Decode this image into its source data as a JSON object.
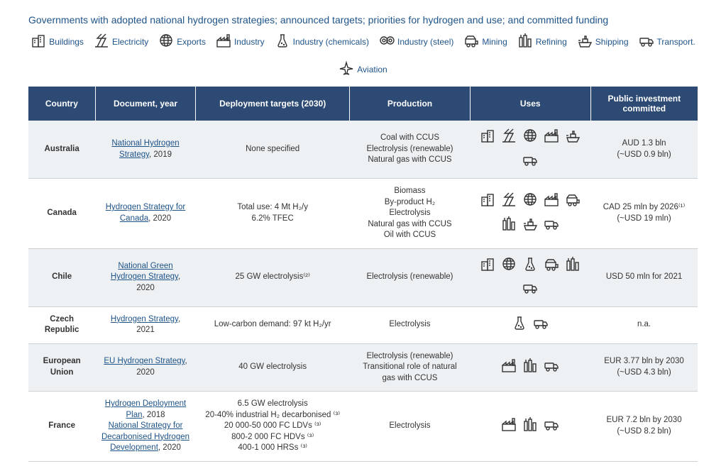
{
  "title": "Governments with adopted national hydrogen strategies; announced targets; priorities for hydrogen and use; and committed funding",
  "colors": {
    "header_bg": "#2c4a73",
    "header_text": "#ffffff",
    "title_text": "#1f5488",
    "link_text": "#1f5488",
    "row_alt_bg": "#eef1f4",
    "icon_stroke": "#333333",
    "border": "#d0d0d0"
  },
  "legend": [
    {
      "icon": "buildings",
      "label": "Buildings"
    },
    {
      "icon": "electricity",
      "label": "Electricity"
    },
    {
      "icon": "exports",
      "label": "Exports"
    },
    {
      "icon": "industry",
      "label": "Industry"
    },
    {
      "icon": "chemicals",
      "label": "Industry (chemicals)"
    },
    {
      "icon": "steel",
      "label": "Industry (steel)"
    },
    {
      "icon": "mining",
      "label": "Mining"
    },
    {
      "icon": "refining",
      "label": "Refining"
    },
    {
      "icon": "shipping",
      "label": "Shipping"
    },
    {
      "icon": "transport",
      "label": "Transport."
    },
    {
      "icon": "aviation",
      "label": "Aviation"
    }
  ],
  "columns": [
    "Country",
    "Document, year",
    "Deployment targets (2030)",
    "Production",
    "Uses",
    "Public investment committed"
  ],
  "rows": [
    {
      "country": "Australia",
      "docs": [
        {
          "text": "National Hydrogen Strategy",
          "year": "2019"
        }
      ],
      "targets": "None specified",
      "production": "Coal with CCUS\nElectrolysis (renewable)\nNatural gas with CCUS",
      "uses": [
        "buildings",
        "electricity",
        "exports",
        "industry",
        "shipping",
        "transport"
      ],
      "funding": "AUD 1.3 bln\n(~USD 0.9 bln)"
    },
    {
      "country": "Canada",
      "docs": [
        {
          "text": "Hydrogen Strategy for Canada",
          "year": "2020"
        }
      ],
      "targets": "Total use: 4 Mt H₂/y\n6.2% TFEC",
      "production": "Biomass\nBy-product H₂\nElectrolysis\nNatural gas with CCUS\nOil with CCUS",
      "uses": [
        "buildings",
        "electricity",
        "exports",
        "industry",
        "mining",
        "refining",
        "shipping",
        "transport"
      ],
      "funding": "CAD 25 mln by 2026⁽¹⁾\n(~USD 19 mln)"
    },
    {
      "country": "Chile",
      "docs": [
        {
          "text": "National Green Hydrogen Strategy",
          "year": "2020"
        }
      ],
      "targets": "25 GW electrolysis⁽²⁾",
      "production": "Electrolysis (renewable)",
      "uses": [
        "buildings",
        "exports",
        "chemicals",
        "mining",
        "refining",
        "transport"
      ],
      "funding": "USD 50 mln for 2021"
    },
    {
      "country": "Czech Republic",
      "docs": [
        {
          "text": "Hydrogen Strategy",
          "year": "2021"
        }
      ],
      "targets": "Low-carbon demand: 97 kt H₂/yr",
      "production": "Electrolysis",
      "uses": [
        "chemicals",
        "transport"
      ],
      "funding": "n.a."
    },
    {
      "country": "European Union",
      "docs": [
        {
          "text": "EU Hydrogen Strategy",
          "year": "2020"
        }
      ],
      "targets": "40 GW electrolysis",
      "production": "Electrolysis (renewable)\nTransitional role of natural gas with CCUS",
      "uses": [
        "industry",
        "refining",
        "transport"
      ],
      "funding": "EUR 3.77 bln by 2030\n(~USD 4.3 bln)"
    },
    {
      "country": "France",
      "docs": [
        {
          "text": "Hydrogen Deployment Plan",
          "year": "2018"
        },
        {
          "text": "National Strategy for Decarbonised Hydrogen Development",
          "year": "2020"
        }
      ],
      "targets": "6.5 GW electrolysis\n20-40% industrial H₂ decarbonised ⁽³⁾\n20 000-50 000 FC LDVs ⁽³⁾\n800-2 000 FC HDVs ⁽³⁾\n400-1 000 HRSs ⁽³⁾",
      "production": "Electrolysis",
      "uses": [
        "industry",
        "refining",
        "transport"
      ],
      "funding": "EUR 7.2 bln by 2030\n(~USD 8.2 bln)"
    }
  ]
}
